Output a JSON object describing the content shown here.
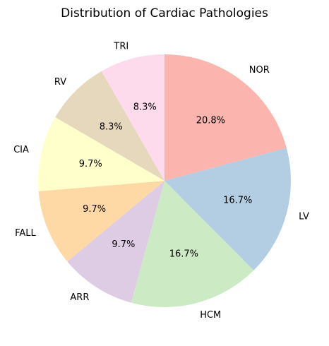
{
  "chart_data": {
    "type": "pie",
    "title": "Distribution of Cardiac Pathologies",
    "start_angle_deg": 90,
    "direction": "clockwise",
    "slices": [
      {
        "label": "NOR",
        "value": 20.8,
        "pct_label": "20.8%",
        "color": "#fbb4ae"
      },
      {
        "label": "LV",
        "value": 16.7,
        "pct_label": "16.7%",
        "color": "#b3cde3"
      },
      {
        "label": "HCM",
        "value": 16.7,
        "pct_label": "16.7%",
        "color": "#ccebc5"
      },
      {
        "label": "ARR",
        "value": 9.7,
        "pct_label": "9.7%",
        "color": "#decbe4"
      },
      {
        "label": "FALL",
        "value": 9.7,
        "pct_label": "9.7%",
        "color": "#fed9a6"
      },
      {
        "label": "CIA",
        "value": 9.7,
        "pct_label": "9.7%",
        "color": "#ffffcc"
      },
      {
        "label": "RV",
        "value": 8.3,
        "pct_label": "8.3%",
        "color": "#e5d8bd"
      },
      {
        "label": "TRI",
        "value": 8.3,
        "pct_label": "8.3%",
        "color": "#fddaec"
      }
    ]
  }
}
